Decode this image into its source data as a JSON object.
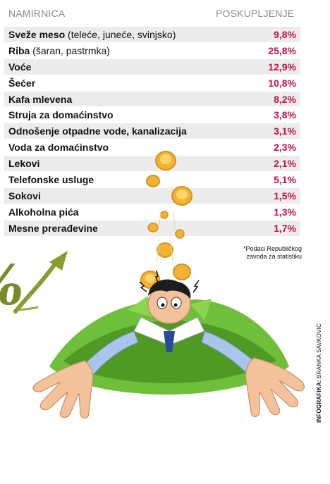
{
  "chart_data": {
    "type": "table",
    "columns": [
      "NAMIRNICA",
      "POSKUPLJENJE"
    ],
    "rows": [
      {
        "item": "Sveže meso",
        "extra": " (teleće, juneće, svinjsko)",
        "value": "9,8%"
      },
      {
        "item": "Riba",
        "extra": " (šaran, pastrmka)",
        "value": "25,8%"
      },
      {
        "item": "Voće",
        "extra": "",
        "value": "12,9%"
      },
      {
        "item": "Šećer",
        "extra": "",
        "value": "10,8%"
      },
      {
        "item": "Kafa mlevena",
        "extra": "",
        "value": "8,2%"
      },
      {
        "item": "Struja za domaćinstvo",
        "extra": "",
        "value": "3,8%"
      },
      {
        "item": "Odnošenje otpadne vode, kanalizacija",
        "extra": "",
        "value": "3,1%"
      },
      {
        "item": "Voda za domaćinstvo",
        "extra": "",
        "value": "2,3%"
      },
      {
        "item": "Lekovi",
        "extra": "",
        "value": "2,1%"
      },
      {
        "item": "Telefonske usluge",
        "extra": "",
        "value": "5,1%"
      },
      {
        "item": "Sokovi",
        "extra": "",
        "value": "1,5%"
      },
      {
        "item": "Alkoholna pića",
        "extra": "",
        "value": "1,3%"
      },
      {
        "item": "Mesne prerađevine",
        "extra": "",
        "value": "1,7%"
      }
    ],
    "footnote_line1": "*Podaci Republičkog",
    "footnote_line2": "zavoda za statistiku",
    "credit_label": "INFOGRAFIKA:",
    "credit_name": " BRANKA SAVKOVIĆ",
    "symbol": "%"
  },
  "colors": {
    "value_red": "#c4124b",
    "stripe": "#ececec",
    "header_grey": "#8a8a8a",
    "coin_gold": "#f2b233",
    "grass_green": "#6fbf3a",
    "percent_olive": "#7a8a2a"
  },
  "icons": [
    "falling-coin-icon",
    "percent-arrow-icon",
    "worried-man-illustration"
  ]
}
